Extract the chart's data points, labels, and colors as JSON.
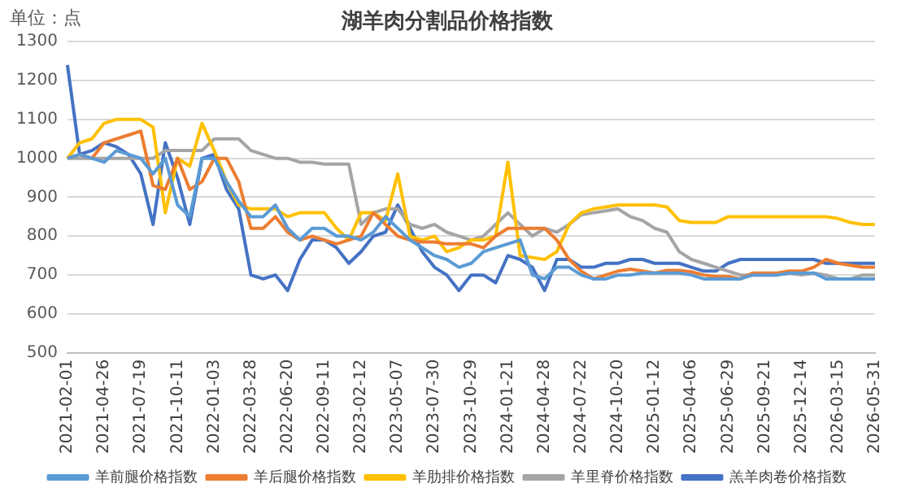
{
  "chart_data": {
    "type": "line",
    "title": "湖羊肉分割品价格指数",
    "annotations": [
      "单位：点"
    ],
    "categories": [
      "2021-02-01",
      null,
      null,
      "2021-04-26",
      null,
      null,
      "2021-07-19",
      null,
      null,
      "2021-10-11",
      null,
      null,
      "2022-01-03",
      null,
      null,
      "2022-03-28",
      null,
      null,
      "2022-06-20",
      null,
      null,
      "2022-09-11",
      null,
      null,
      "2023-02-12",
      null,
      null,
      "2023-05-07",
      null,
      null,
      "2023-07-30",
      null,
      null,
      "2023-10-29",
      null,
      null,
      "2024-01-21",
      null,
      null,
      "2024-04-28",
      null,
      null,
      "2024-07-22",
      null,
      null,
      "2024-10-20",
      null,
      null,
      "2025-01-12",
      null,
      null,
      "2025-04-06",
      null,
      null,
      "2025-06-29",
      null,
      null,
      "2025-09-21",
      null,
      null,
      "2025-12-14",
      null,
      null,
      "2026-03-15",
      null,
      null,
      "2026-05-31"
    ],
    "series": [
      {
        "name": "羊前腿价格指数",
        "color": "#5b9bd5",
        "values": [
          1000,
          1010,
          1000,
          990,
          1020,
          1010,
          1000,
          960,
          1000,
          880,
          850,
          1000,
          1000,
          940,
          890,
          850,
          850,
          880,
          820,
          790,
          820,
          820,
          800,
          800,
          790,
          810,
          850,
          820,
          790,
          770,
          750,
          740,
          720,
          730,
          760,
          770,
          780,
          790,
          700,
          690,
          720,
          720,
          700,
          690,
          690,
          700,
          700,
          705,
          705,
          705,
          705,
          700,
          690,
          690,
          690,
          690,
          700,
          700,
          700,
          705,
          705,
          705,
          690,
          690,
          690,
          690,
          690
        ]
      },
      {
        "name": "羊后腿价格指数",
        "color": "#ed7d31",
        "values": [
          1000,
          1010,
          1000,
          1040,
          1050,
          1060,
          1070,
          930,
          920,
          1000,
          920,
          940,
          1000,
          1000,
          940,
          820,
          820,
          850,
          810,
          790,
          800,
          790,
          780,
          790,
          800,
          860,
          830,
          800,
          790,
          785,
          785,
          780,
          780,
          780,
          770,
          800,
          820,
          820,
          820,
          820,
          790,
          740,
          710,
          690,
          700,
          710,
          715,
          710,
          705,
          712,
          712,
          708,
          700,
          696,
          696,
          690,
          705,
          705,
          705,
          710,
          710,
          720,
          740,
          730,
          725,
          720,
          720
        ]
      },
      {
        "name": "羊肋排价格指数",
        "color": "#ffc000",
        "values": [
          1000,
          1040,
          1050,
          1090,
          1100,
          1100,
          1100,
          1080,
          860,
          1000,
          980,
          1090,
          1020,
          940,
          880,
          870,
          870,
          870,
          850,
          860,
          860,
          860,
          820,
          790,
          860,
          860,
          840,
          960,
          800,
          790,
          800,
          760,
          770,
          790,
          790,
          800,
          990,
          750,
          745,
          740,
          760,
          830,
          860,
          870,
          875,
          880,
          880,
          880,
          880,
          875,
          840,
          835,
          835,
          835,
          850,
          850,
          850,
          850,
          850,
          850,
          850,
          850,
          850,
          845,
          835,
          830,
          830
        ]
      },
      {
        "name": "羊里脊价格指数",
        "color": "#a5a5a5",
        "values": [
          1000,
          1000,
          1000,
          1000,
          1000,
          1000,
          1000,
          1000,
          1020,
          1020,
          1020,
          1020,
          1050,
          1050,
          1050,
          1020,
          1010,
          1000,
          1000,
          990,
          990,
          985,
          985,
          985,
          830,
          860,
          870,
          870,
          830,
          820,
          830,
          810,
          800,
          790,
          800,
          830,
          860,
          830,
          800,
          820,
          810,
          830,
          855,
          860,
          865,
          870,
          850,
          840,
          820,
          810,
          760,
          740,
          730,
          720,
          710,
          700,
          700,
          700,
          700,
          705,
          700,
          705,
          700,
          690,
          690,
          700,
          700
        ]
      },
      {
        "name": "羔羊肉卷价格指数",
        "color": "#4472c4",
        "values": [
          1240,
          1010,
          1020,
          1040,
          1030,
          1010,
          960,
          830,
          1040,
          950,
          830,
          1000,
          1010,
          920,
          870,
          700,
          690,
          700,
          660,
          740,
          790,
          790,
          770,
          730,
          760,
          800,
          810,
          880,
          820,
          760,
          720,
          700,
          660,
          700,
          700,
          680,
          750,
          740,
          720,
          660,
          740,
          740,
          720,
          720,
          730,
          730,
          740,
          740,
          730,
          730,
          730,
          720,
          710,
          710,
          730,
          740,
          740,
          740,
          740,
          740,
          740,
          740,
          730,
          730,
          730,
          730,
          730
        ]
      }
    ],
    "ylim": [
      500,
      1300
    ],
    "yticks": [
      500,
      600,
      700,
      800,
      900,
      1000,
      1100,
      1200,
      1300
    ],
    "grid": "y",
    "legend": "bottom",
    "marker": "none",
    "line_style": "solid"
  }
}
